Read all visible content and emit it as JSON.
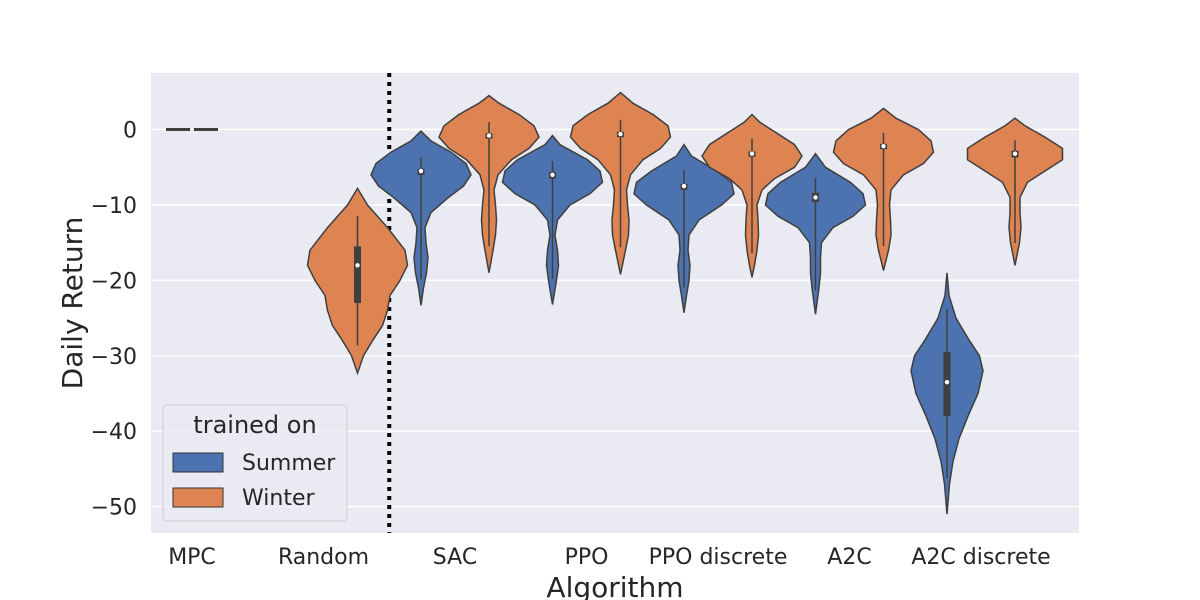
{
  "chart_data": {
    "type": "violin",
    "xlabel": "Algorithm",
    "ylabel": "Daily Return",
    "ylim": [
      -53.5,
      7.5
    ],
    "yticks": [
      0,
      -10,
      -20,
      -30,
      -40,
      -50
    ],
    "ytick_labels": [
      "0",
      "−10",
      "−20",
      "−30",
      "−40",
      "−50"
    ],
    "categories": [
      "MPC",
      "Random",
      "SAC",
      "PPO",
      "PPO discrete",
      "A2C",
      "A2C discrete"
    ],
    "grid": true,
    "separator_after_category": "Random",
    "legend": {
      "title": "trained on",
      "placement": "lower-left",
      "entries": [
        {
          "name": "Summer",
          "color": "#4c72b0"
        },
        {
          "name": "Winter",
          "color": "#dd8452"
        }
      ]
    },
    "series": [
      {
        "name": "Summer",
        "color": "#4c72b0",
        "violins": [
          {
            "category": "MPC",
            "min": 0,
            "max": 0,
            "median": 0,
            "q1": 0,
            "q3": 0,
            "profile": [
              [
                0,
                1.0
              ]
            ]
          },
          null,
          {
            "category": "SAC",
            "min": -23.3,
            "max": -0.2,
            "median": -5.5,
            "q1": -6.0,
            "q3": -5.2,
            "profile": [
              [
                -0.2,
                0
              ],
              [
                -1.5,
                0.2
              ],
              [
                -3,
                0.6
              ],
              [
                -4.5,
                0.9
              ],
              [
                -6,
                1.0
              ],
              [
                -7.5,
                0.85
              ],
              [
                -9,
                0.55
              ],
              [
                -11,
                0.2
              ],
              [
                -13,
                0.08
              ],
              [
                -15,
                0.1
              ],
              [
                -17,
                0.14
              ],
              [
                -19,
                0.11
              ],
              [
                -21,
                0.05
              ],
              [
                -23.3,
                0
              ]
            ]
          },
          {
            "category": "PPO",
            "min": -23.2,
            "max": -0.8,
            "median": -6.0,
            "q1": -6.5,
            "q3": -5.6,
            "profile": [
              [
                -0.8,
                0
              ],
              [
                -2,
                0.15
              ],
              [
                -4,
                0.7
              ],
              [
                -5.5,
                0.95
              ],
              [
                -7,
                1.0
              ],
              [
                -8.5,
                0.75
              ],
              [
                -10,
                0.35
              ],
              [
                -12,
                0.1
              ],
              [
                -14,
                0.05
              ],
              [
                -16,
                0.1
              ],
              [
                -18,
                0.12
              ],
              [
                -20,
                0.08
              ],
              [
                -22,
                0.03
              ],
              [
                -23.2,
                0
              ]
            ]
          },
          {
            "category": "PPO discrete",
            "min": -24.3,
            "max": -2.0,
            "median": -7.5,
            "q1": -8.0,
            "q3": -7.2,
            "profile": [
              [
                -2,
                0
              ],
              [
                -3.5,
                0.15
              ],
              [
                -5.5,
                0.65
              ],
              [
                -7,
                0.95
              ],
              [
                -8.5,
                1.0
              ],
              [
                -10,
                0.75
              ],
              [
                -12,
                0.3
              ],
              [
                -14,
                0.1
              ],
              [
                -16,
                0.08
              ],
              [
                -18,
                0.12
              ],
              [
                -20,
                0.1
              ],
              [
                -22,
                0.05
              ],
              [
                -24.3,
                0
              ]
            ]
          },
          {
            "category": "A2C",
            "min": -24.5,
            "max": -3.2,
            "median": -9.0,
            "q1": -9.6,
            "q3": -8.4,
            "profile": [
              [
                -3.2,
                0
              ],
              [
                -5,
                0.2
              ],
              [
                -7,
                0.7
              ],
              [
                -8.5,
                0.95
              ],
              [
                -10,
                1.0
              ],
              [
                -11.5,
                0.75
              ],
              [
                -13,
                0.35
              ],
              [
                -15,
                0.12
              ],
              [
                -17,
                0.1
              ],
              [
                -19,
                0.1
              ],
              [
                -21,
                0.07
              ],
              [
                -23,
                0.03
              ],
              [
                -24.5,
                0
              ]
            ]
          },
          {
            "category": "A2C discrete",
            "min": -51.0,
            "max": -19.0,
            "median": -33.5,
            "q1": -38.0,
            "q3": -29.5,
            "profile": [
              [
                -19,
                0
              ],
              [
                -22,
                0.04
              ],
              [
                -25,
                0.18
              ],
              [
                -28,
                0.45
              ],
              [
                -30,
                0.65
              ],
              [
                -32,
                0.72
              ],
              [
                -35,
                0.62
              ],
              [
                -38,
                0.42
              ],
              [
                -41,
                0.24
              ],
              [
                -44,
                0.12
              ],
              [
                -47,
                0.05
              ],
              [
                -51,
                0
              ]
            ]
          }
        ]
      },
      {
        "name": "Winter",
        "color": "#dd8452",
        "violins": [
          null,
          {
            "category": "Random",
            "min": -32.3,
            "max": -7.8,
            "median": -18.0,
            "q1": -23.0,
            "q3": -15.5,
            "profile": [
              [
                -7.8,
                0
              ],
              [
                -10,
                0.2
              ],
              [
                -13,
                0.6
              ],
              [
                -16,
                0.95
              ],
              [
                -18,
                1.0
              ],
              [
                -20,
                0.85
              ],
              [
                -22,
                0.65
              ],
              [
                -24,
                0.6
              ],
              [
                -26,
                0.5
              ],
              [
                -28,
                0.3
              ],
              [
                -30,
                0.12
              ],
              [
                -32.3,
                0
              ]
            ]
          },
          {
            "category": "SAC",
            "min": -19.0,
            "max": 4.5,
            "median": -0.8,
            "q1": -1.2,
            "q3": -0.5,
            "profile": [
              [
                4.5,
                0
              ],
              [
                3.5,
                0.2
              ],
              [
                2,
                0.6
              ],
              [
                0.5,
                0.9
              ],
              [
                -1,
                1.0
              ],
              [
                -2.5,
                0.8
              ],
              [
                -4,
                0.45
              ],
              [
                -6,
                0.18
              ],
              [
                -8,
                0.1
              ],
              [
                -10,
                0.13
              ],
              [
                -12,
                0.15
              ],
              [
                -14,
                0.13
              ],
              [
                -16,
                0.08
              ],
              [
                -19,
                0
              ]
            ]
          },
          {
            "category": "PPO",
            "min": -19.2,
            "max": 4.9,
            "median": -0.6,
            "q1": -1.0,
            "q3": -0.3,
            "profile": [
              [
                4.9,
                0
              ],
              [
                3.5,
                0.25
              ],
              [
                2,
                0.65
              ],
              [
                0.5,
                0.95
              ],
              [
                -1,
                1.0
              ],
              [
                -2.5,
                0.8
              ],
              [
                -4,
                0.45
              ],
              [
                -6,
                0.2
              ],
              [
                -8,
                0.12
              ],
              [
                -10,
                0.14
              ],
              [
                -12,
                0.17
              ],
              [
                -14,
                0.16
              ],
              [
                -16,
                0.1
              ],
              [
                -19.2,
                0
              ]
            ]
          },
          {
            "category": "PPO discrete",
            "min": -19.6,
            "max": 2.0,
            "median": -3.2,
            "q1": -3.6,
            "q3": -2.9,
            "profile": [
              [
                2,
                0
              ],
              [
                1,
                0.15
              ],
              [
                -0.5,
                0.5
              ],
              [
                -2,
                0.85
              ],
              [
                -3.5,
                1.0
              ],
              [
                -5,
                0.85
              ],
              [
                -6.5,
                0.45
              ],
              [
                -8,
                0.2
              ],
              [
                -10,
                0.1
              ],
              [
                -12,
                0.12
              ],
              [
                -14,
                0.13
              ],
              [
                -16,
                0.1
              ],
              [
                -18,
                0.05
              ],
              [
                -19.6,
                0
              ]
            ]
          },
          {
            "category": "A2C",
            "min": -18.7,
            "max": 2.8,
            "median": -2.2,
            "q1": -2.6,
            "q3": -1.9,
            "profile": [
              [
                2.8,
                0
              ],
              [
                1.5,
                0.25
              ],
              [
                0,
                0.7
              ],
              [
                -1.5,
                0.95
              ],
              [
                -3,
                1.0
              ],
              [
                -4.5,
                0.8
              ],
              [
                -6,
                0.4
              ],
              [
                -8,
                0.15
              ],
              [
                -10,
                0.12
              ],
              [
                -12,
                0.14
              ],
              [
                -14,
                0.15
              ],
              [
                -16,
                0.1
              ],
              [
                -18.7,
                0
              ]
            ]
          },
          {
            "category": "A2C discrete",
            "min": -18.0,
            "max": 1.5,
            "median": -3.2,
            "q1": -3.7,
            "q3": -2.8,
            "profile": [
              [
                1.5,
                0
              ],
              [
                0.5,
                0.2
              ],
              [
                -1,
                0.6
              ],
              [
                -2.5,
                0.95
              ],
              [
                -4,
                0.95
              ],
              [
                -5.5,
                0.6
              ],
              [
                -7,
                0.25
              ],
              [
                -9,
                0.1
              ],
              [
                -11,
                0.1
              ],
              [
                -13,
                0.12
              ],
              [
                -15,
                0.09
              ],
              [
                -18,
                0
              ]
            ]
          }
        ]
      }
    ]
  }
}
